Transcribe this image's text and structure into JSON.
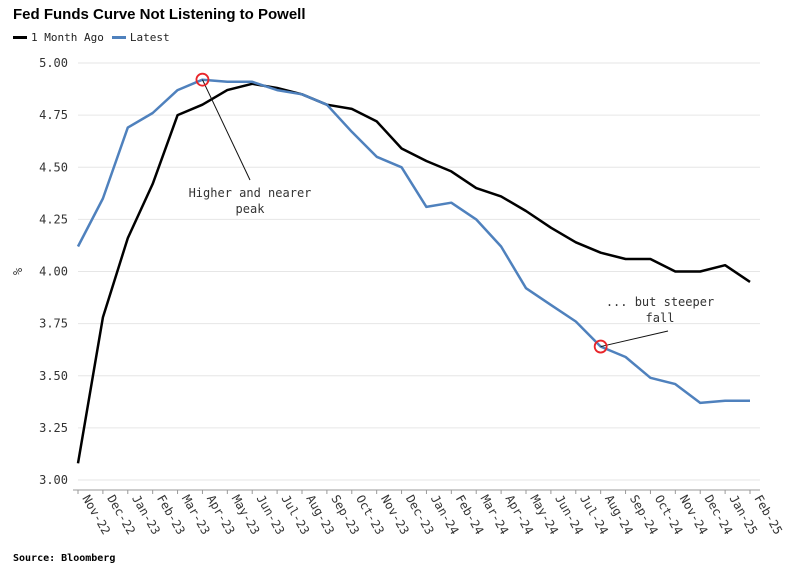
{
  "chart_data": {
    "type": "line",
    "title": "Fed Funds Curve Not Listening to Powell",
    "ylabel": "%",
    "xlabel": "",
    "ylim": [
      3.0,
      5.0
    ],
    "yticks": [
      "3.00",
      "3.25",
      "3.50",
      "3.75",
      "4.00",
      "4.25",
      "4.50",
      "4.75",
      "5.00"
    ],
    "categories": [
      "Nov-22",
      "Dec-22",
      "Jan-23",
      "Feb-23",
      "Mar-23",
      "Apr-23",
      "May-23",
      "Jun-23",
      "Jul-23",
      "Aug-23",
      "Sep-23",
      "Oct-23",
      "Nov-23",
      "Dec-23",
      "Jan-24",
      "Feb-24",
      "Mar-24",
      "Apr-24",
      "May-24",
      "Jun-24",
      "Jul-24",
      "Aug-24",
      "Sep-24",
      "Oct-24",
      "Nov-24",
      "Dec-24",
      "Jan-25",
      "Feb-25"
    ],
    "grid": true,
    "legend_position": "top-left",
    "series": [
      {
        "name": "1 Month Ago",
        "color": "#000000",
        "values": [
          3.08,
          3.78,
          4.16,
          4.42,
          4.75,
          4.8,
          4.87,
          4.9,
          4.88,
          4.85,
          4.8,
          4.78,
          4.72,
          4.59,
          4.53,
          4.48,
          4.4,
          4.36,
          4.29,
          4.21,
          4.14,
          4.09,
          4.06,
          4.06,
          4.0,
          4.0,
          4.03,
          3.95
        ]
      },
      {
        "name": "Latest",
        "color": "#4f81bd",
        "values": [
          4.12,
          4.35,
          4.69,
          4.76,
          4.87,
          4.92,
          4.91,
          4.91,
          4.87,
          4.85,
          4.8,
          4.67,
          4.55,
          4.5,
          4.31,
          4.33,
          4.25,
          4.12,
          3.92,
          3.84,
          3.76,
          3.64,
          3.59,
          3.49,
          3.46,
          3.37,
          3.38,
          3.38
        ]
      }
    ],
    "annotations": [
      {
        "text_lines": [
          "Higher and nearer",
          "peak"
        ],
        "target_category": "Apr-23",
        "target_value": 4.92
      },
      {
        "text_lines": [
          "... but steeper",
          "fall"
        ],
        "target_category": "Aug-24",
        "target_value": 3.64
      }
    ]
  },
  "source": "Source: Bloomberg",
  "colors": {
    "latest": "#4f81bd",
    "month_ago": "#000000",
    "highlight": "#e8252a",
    "grid": "#e6e6e6"
  }
}
